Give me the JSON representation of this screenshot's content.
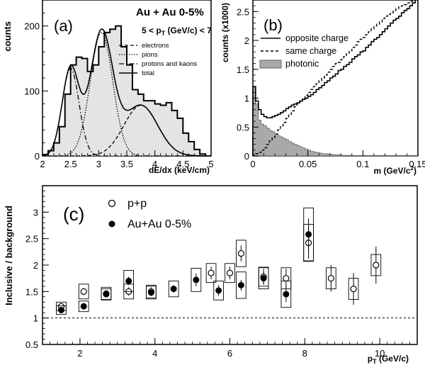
{
  "chart_data": [
    {
      "panel_label": "(a)",
      "type": "histogram",
      "title_line1": "Au + Au 0-5%",
      "title_line2": "5 < p",
      "title_line2_sub": "T",
      "title_line2_rest": " (GeV/c) < 7",
      "xlabel": "dE/dx (keV/cm)",
      "ylabel": "counts",
      "xlim": [
        2,
        5
      ],
      "ylim": [
        0,
        240
      ],
      "xticks": [
        2,
        2.5,
        3,
        3.5,
        4,
        4.5,
        5
      ],
      "xtick_labels": [
        "2",
        "2.5",
        "3",
        "3.5",
        "4",
        "4.5",
        "5"
      ],
      "yticks": [
        0,
        100,
        200
      ],
      "legend": [
        "electrons",
        "pions",
        "protons and kaons",
        "total"
      ],
      "histogram": {
        "x_start": 2.05,
        "bin_width": 0.1,
        "values": [
          2,
          8,
          20,
          45,
          95,
          140,
          152,
          150,
          130,
          140,
          168,
          190,
          195,
          200,
          168,
          140,
          102,
          95,
          85,
          85,
          80,
          78,
          82,
          70,
          58,
          35,
          22,
          10,
          3
        ]
      },
      "gaussians": {
        "electrons": {
          "mean": 3.75,
          "sigma": 0.3,
          "amplitude": 78
        },
        "pions": {
          "mean": 3.05,
          "sigma": 0.2,
          "amplitude": 190
        },
        "protons_and_kaons": {
          "mean": 2.5,
          "sigma": 0.15,
          "amplitude": 135
        }
      }
    },
    {
      "panel_label": "(b)",
      "type": "histogram",
      "xlabel": "m (GeV/c",
      "xlabel_sup": "2",
      "xlabel_close": ")",
      "ylabel": "counts (x1000)",
      "xlim": [
        0,
        0.15
      ],
      "ylim": [
        0,
        2.7
      ],
      "xticks": [
        0,
        0.05,
        0.1,
        0.15
      ],
      "xtick_labels": [
        "0",
        "0.05",
        "0.1",
        "0.15"
      ],
      "yticks": [
        0,
        0.5,
        1,
        1.5,
        2,
        2.5
      ],
      "ytick_labels": [
        "0",
        "0.5",
        "1",
        "1.5",
        "2",
        "2.5"
      ],
      "legend": [
        "opposite charge",
        "same charge",
        "photonic"
      ],
      "opposite_charge": {
        "x_start": 0,
        "bin_width": 0.0025,
        "values": [
          1.2,
          0.95,
          0.8,
          0.72,
          0.68,
          0.66,
          0.66,
          0.68,
          0.7,
          0.72,
          0.75,
          0.78,
          0.82,
          0.85,
          0.88,
          0.9,
          0.92,
          0.95,
          0.98,
          1.0,
          1.03,
          1.06,
          1.1,
          1.15,
          1.18,
          1.22,
          1.27,
          1.3,
          1.35,
          1.38,
          1.42,
          1.48,
          1.5,
          1.55,
          1.58,
          1.62,
          1.68,
          1.72,
          1.75,
          1.8,
          1.82,
          1.88,
          1.92,
          1.98,
          2.02,
          2.05,
          2.1,
          2.15,
          2.2,
          2.25,
          2.3,
          2.35,
          2.38,
          2.42,
          2.48,
          2.52,
          2.55,
          2.6,
          2.65,
          2.72
        ]
      },
      "same_charge": {
        "x_start": 0,
        "bin_width": 0.0025,
        "values": [
          0.02,
          0.04,
          0.06,
          0.1,
          0.14,
          0.2,
          0.26,
          0.32,
          0.38,
          0.45,
          0.52,
          0.58,
          0.65,
          0.72,
          0.78,
          0.85,
          0.9,
          0.95,
          1.0,
          1.05,
          1.1,
          1.15,
          1.2,
          1.25,
          1.3,
          1.35,
          1.4,
          1.45,
          1.5,
          1.55,
          1.6,
          1.62,
          1.67,
          1.72,
          1.78,
          1.82,
          1.88,
          1.92,
          1.98,
          2.02,
          2.05,
          2.1,
          2.15,
          2.2,
          2.25,
          2.28,
          2.32,
          2.38,
          2.42,
          2.45,
          2.48,
          2.52,
          2.55,
          2.58,
          2.6,
          2.62,
          2.65,
          2.68,
          2.7,
          2.75
        ]
      },
      "photonic": {
        "x_start": 0,
        "bin_width": 0.0025,
        "values": [
          1.2,
          0.9,
          0.62,
          0.55,
          0.52,
          0.48,
          0.44,
          0.42,
          0.38,
          0.35,
          0.33,
          0.3,
          0.28,
          0.25,
          0.22,
          0.2,
          0.18,
          0.16,
          0.14,
          0.12,
          0.1,
          0.08,
          0.07,
          0.06,
          0.05,
          0.04,
          0.04,
          0.03,
          0.03,
          0.02,
          0.02,
          0.02,
          0.01,
          0.01,
          0.01,
          0.01,
          0.0,
          0.0,
          0.0,
          0.0,
          0.0,
          0.0,
          0.0,
          0.0,
          0.0,
          0.0,
          0.0,
          0.0,
          0.0,
          0.0,
          0.0,
          0.0,
          0.0,
          0.0,
          0.0,
          0.0,
          0.0,
          0.0,
          0.0,
          0.0
        ]
      }
    },
    {
      "panel_label": "(c)",
      "type": "scatter",
      "xlabel": "p",
      "xlabel_sub": "T",
      "xlabel_rest": " (GeV/c)",
      "ylabel": "Inclusive / background",
      "xlim": [
        1.0,
        11.0
      ],
      "ylim": [
        0.5,
        3.5
      ],
      "xticks": [
        2,
        4,
        6,
        8,
        10
      ],
      "xtick_labels": [
        "2",
        "4",
        "6",
        "8",
        "10"
      ],
      "yticks": [
        0.5,
        1,
        1.5,
        2,
        2.5,
        3
      ],
      "ytick_labels": [
        "0.5",
        "1",
        "1.5",
        "2",
        "2.5",
        "3"
      ],
      "reference_line": 1,
      "legend": [
        "p+p",
        "Au+Au 0-5%"
      ],
      "series": [
        {
          "name": "p+p",
          "marker": "open-circle",
          "points": [
            {
              "x": 1.5,
              "y": 1.22,
              "err": 0.04,
              "sys": 0.08
            },
            {
              "x": 2.1,
              "y": 1.5,
              "err": 0.07,
              "sys": 0.14
            },
            {
              "x": 2.7,
              "y": 1.46,
              "err": 0.05,
              "sys": 0.12
            },
            {
              "x": 3.3,
              "y": 1.5,
              "err": 0.08,
              "sys": 0.14
            },
            {
              "x": 3.9,
              "y": 1.5,
              "err": 0.08,
              "sys": 0.12
            },
            {
              "x": 5.5,
              "y": 1.85,
              "err": 0.12,
              "sys": 0.18
            },
            {
              "x": 6.0,
              "y": 1.85,
              "err": 0.12,
              "sys": 0.18
            },
            {
              "x": 6.3,
              "y": 2.22,
              "err": 0.15,
              "sys": 0.25
            },
            {
              "x": 6.9,
              "y": 1.78,
              "err": 0.15,
              "sys": 0.18
            },
            {
              "x": 7.5,
              "y": 1.75,
              "err": 0.18,
              "sys": 0.2
            },
            {
              "x": 8.1,
              "y": 2.42,
              "err": 0.3,
              "sys": 0.35
            },
            {
              "x": 8.7,
              "y": 1.75,
              "err": 0.25,
              "sys": 0.2
            },
            {
              "x": 9.3,
              "y": 1.55,
              "err": 0.3,
              "sys": 0.2
            },
            {
              "x": 9.9,
              "y": 2.0,
              "err": 0.35,
              "sys": 0.2
            }
          ]
        },
        {
          "name": "Au+Au 0-5%",
          "marker": "filled-circle",
          "points": [
            {
              "x": 1.5,
              "y": 1.15,
              "err": 0.03,
              "sys": 0.08
            },
            {
              "x": 2.1,
              "y": 1.22,
              "err": 0.04,
              "sys": 0.1
            },
            {
              "x": 2.7,
              "y": 1.45,
              "err": 0.04,
              "sys": 0.1
            },
            {
              "x": 3.3,
              "y": 1.7,
              "err": 0.08,
              "sys": 0.2
            },
            {
              "x": 3.9,
              "y": 1.48,
              "err": 0.06,
              "sys": 0.12
            },
            {
              "x": 4.5,
              "y": 1.55,
              "err": 0.07,
              "sys": 0.15
            },
            {
              "x": 5.1,
              "y": 1.72,
              "err": 0.12,
              "sys": 0.22
            },
            {
              "x": 5.7,
              "y": 1.52,
              "err": 0.1,
              "sys": 0.18
            },
            {
              "x": 6.3,
              "y": 1.62,
              "err": 0.1,
              "sys": 0.25
            },
            {
              "x": 6.9,
              "y": 1.75,
              "err": 0.12,
              "sys": 0.2
            },
            {
              "x": 7.5,
              "y": 1.45,
              "err": 0.15,
              "sys": 0.25
            },
            {
              "x": 8.1,
              "y": 2.58,
              "err": 0.3,
              "sys": 0.5
            }
          ]
        }
      ]
    }
  ]
}
